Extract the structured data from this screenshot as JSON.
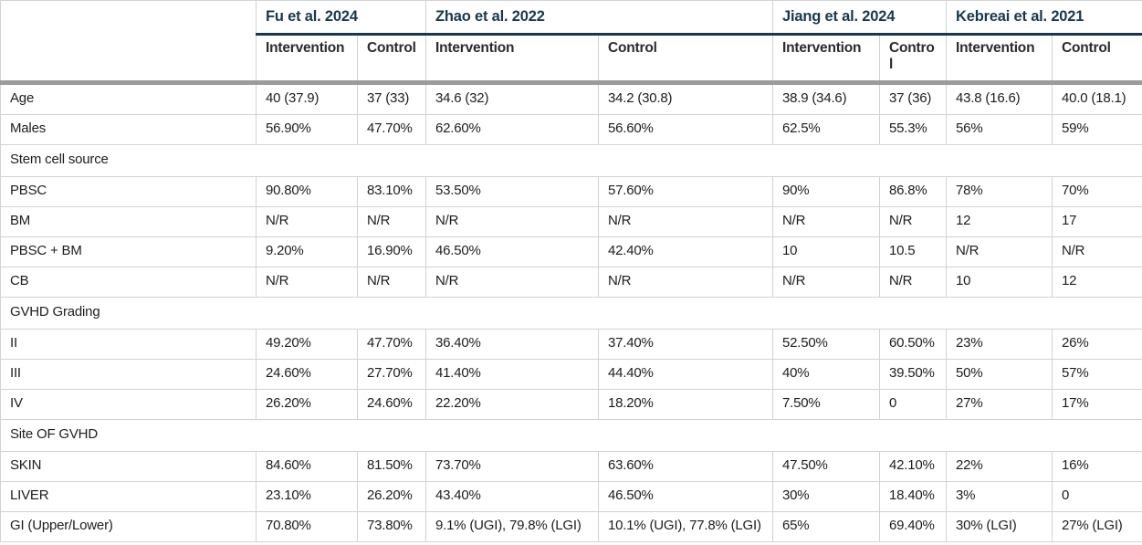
{
  "table": {
    "colors": {
      "header_accent": "#17394d",
      "separator_bar": "#9b9b9b",
      "cell_border": "#d2d2d2",
      "text": "#1d1d1d"
    },
    "studies": [
      {
        "name": "Fu et al. 2024"
      },
      {
        "name": "Zhao et al. 2022"
      },
      {
        "name": "Jiang et al. 2024"
      },
      {
        "name": "Kebreai et al. 2021"
      }
    ],
    "subheaders": [
      "Intervention",
      "Control",
      "Intervention",
      "Control",
      "Intervention",
      "Control",
      "Intervention",
      "Control"
    ],
    "rows": [
      {
        "type": "data",
        "label": "Age",
        "values": [
          "40 (37.9)",
          "37 (33)",
          "34.6 (32)",
          "34.2 (30.8)",
          "38.9 (34.6)",
          "37 (36)",
          "43.8 (16.6)",
          "40.0 (18.1)"
        ]
      },
      {
        "type": "data",
        "label": "Males",
        "values": [
          "56.90%",
          "47.70%",
          "62.60%",
          "56.60%",
          "62.5%",
          "55.3%",
          "56%",
          "59%"
        ]
      },
      {
        "type": "section",
        "label": "Stem cell source"
      },
      {
        "type": "data",
        "label": "PBSC",
        "values": [
          "90.80%",
          "83.10%",
          "53.50%",
          "57.60%",
          "90%",
          "86.8%",
          "78%",
          "70%"
        ]
      },
      {
        "type": "data",
        "label": "BM",
        "values": [
          "N/R",
          "N/R",
          "N/R",
          "N/R",
          "N/R",
          "N/R",
          "12",
          "17"
        ]
      },
      {
        "type": "data",
        "label": "PBSC + BM",
        "values": [
          "9.20%",
          "16.90%",
          "46.50%",
          "42.40%",
          "10",
          "10.5",
          "N/R",
          "N/R"
        ]
      },
      {
        "type": "data",
        "label": "CB",
        "values": [
          "N/R",
          "N/R",
          "N/R",
          "N/R",
          "N/R",
          "N/R",
          "10",
          "12"
        ]
      },
      {
        "type": "section",
        "label": "GVHD Grading"
      },
      {
        "type": "data",
        "label": "II",
        "values": [
          "49.20%",
          "47.70%",
          "36.40%",
          "37.40%",
          "52.50%",
          "60.50%",
          "23%",
          "26%"
        ]
      },
      {
        "type": "data",
        "label": "III",
        "values": [
          "24.60%",
          "27.70%",
          "41.40%",
          "44.40%",
          "40%",
          "39.50%",
          "50%",
          "57%"
        ]
      },
      {
        "type": "data",
        "label": "IV",
        "values": [
          "26.20%",
          "24.60%",
          "22.20%",
          "18.20%",
          "7.50%",
          "0",
          "27%",
          "17%"
        ]
      },
      {
        "type": "section",
        "label": "Site OF GVHD"
      },
      {
        "type": "data",
        "label": "SKIN",
        "values": [
          "84.60%",
          "81.50%",
          "73.70%",
          "63.60%",
          "47.50%",
          "42.10%",
          "22%",
          "16%"
        ]
      },
      {
        "type": "data",
        "label": "LIVER",
        "values": [
          "23.10%",
          "26.20%",
          "43.40%",
          "46.50%",
          "30%",
          "18.40%",
          "3%",
          "0"
        ]
      },
      {
        "type": "data",
        "label": "GI (Upper/Lower)",
        "values": [
          "70.80%",
          "73.80%",
          "9.1% (UGI), 79.8% (LGI)",
          "10.1% (UGI), 77.8% (LGI)",
          "65%",
          "69.40%",
          "30% (LGI)",
          "27% (LGI)"
        ]
      }
    ]
  }
}
